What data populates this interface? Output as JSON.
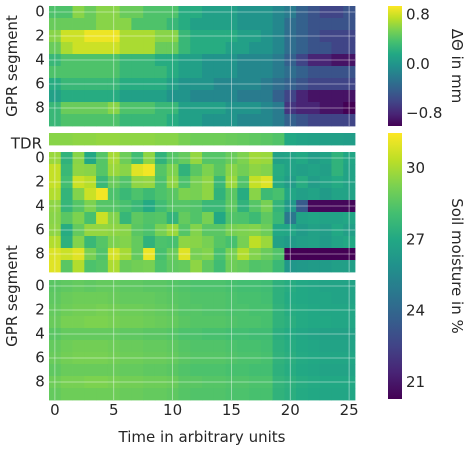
{
  "chart_data": {
    "type": "heatmap",
    "xlabel": "Time in arbitrary units",
    "x_ticks": [
      0,
      5,
      10,
      15,
      20,
      25
    ],
    "x_range": [
      -0.5,
      25.5
    ],
    "y_ticks": [
      0,
      2,
      4,
      6,
      8
    ],
    "grid": true,
    "panels": [
      {
        "id": "delta",
        "ylabel": "GPR segment",
        "rows": 10,
        "colorbar": {
          "label": "ΔΘ in mm",
          "min": -1.0,
          "max": 0.95,
          "ticks": [
            0.8,
            0.0,
            -0.8
          ],
          "tick_labels": [
            "0.8",
            "0.0",
            "−0.8"
          ]
        },
        "values": [
          [
            0.4,
            0.4,
            0.6,
            0.5,
            0.6,
            0.6,
            0.5,
            0.5,
            0.4,
            0.4,
            0.4,
            0.2,
            0.2,
            0.1,
            0.1,
            0.1,
            0.0,
            0.0,
            0.0,
            -0.1,
            -0.2,
            -0.4,
            -0.5,
            -0.6,
            -0.6,
            -0.5
          ],
          [
            0.5,
            0.5,
            0.5,
            0.5,
            0.6,
            0.6,
            0.6,
            0.4,
            0.4,
            0.4,
            0.3,
            0.2,
            0.1,
            0.1,
            0.1,
            0.1,
            0.0,
            0.0,
            0.0,
            -0.1,
            -0.3,
            -0.4,
            -0.5,
            -0.5,
            -0.5,
            -0.5
          ],
          [
            0.6,
            0.8,
            0.8,
            0.9,
            0.9,
            0.9,
            0.7,
            0.7,
            0.7,
            0.6,
            0.6,
            0.3,
            0.2,
            0.2,
            0.2,
            0.2,
            0.1,
            0.1,
            0.0,
            -0.1,
            -0.3,
            -0.4,
            -0.5,
            -0.6,
            -0.6,
            -0.6
          ],
          [
            0.5,
            0.7,
            0.8,
            0.8,
            0.8,
            0.8,
            0.7,
            0.7,
            0.7,
            0.5,
            0.5,
            0.3,
            0.2,
            0.2,
            0.2,
            0.1,
            0.1,
            0.0,
            0.0,
            -0.1,
            -0.3,
            -0.4,
            -0.5,
            -0.5,
            -0.6,
            -0.6
          ],
          [
            0.3,
            0.4,
            0.4,
            0.4,
            0.4,
            0.4,
            0.3,
            0.3,
            0.3,
            0.2,
            0.2,
            0.1,
            0.1,
            0.0,
            0.0,
            0.0,
            -0.1,
            -0.1,
            -0.1,
            -0.2,
            -0.4,
            -0.6,
            -0.8,
            -0.8,
            -0.9,
            -0.9
          ],
          [
            0.4,
            0.4,
            0.4,
            0.4,
            0.4,
            0.4,
            0.3,
            0.3,
            0.3,
            0.3,
            0.2,
            0.1,
            0.1,
            0.0,
            0.0,
            0.0,
            -0.1,
            -0.1,
            -0.1,
            -0.2,
            -0.3,
            -0.4,
            -0.5,
            -0.5,
            -0.5,
            -0.5
          ],
          [
            0.2,
            0.3,
            0.3,
            0.3,
            0.3,
            0.3,
            0.2,
            0.2,
            0.2,
            0.2,
            0.1,
            0.0,
            0.0,
            0.0,
            -0.1,
            -0.1,
            -0.1,
            -0.1,
            -0.2,
            -0.3,
            -0.4,
            -0.5,
            -0.6,
            -0.6,
            -0.6,
            -0.6
          ],
          [
            0.1,
            0.2,
            0.2,
            0.2,
            0.2,
            0.2,
            0.1,
            0.1,
            0.1,
            0.1,
            0.0,
            0.0,
            -0.1,
            -0.1,
            -0.1,
            -0.1,
            -0.2,
            -0.2,
            -0.2,
            -0.4,
            -0.6,
            -0.8,
            -0.9,
            -0.9,
            -0.9,
            -0.9
          ],
          [
            0.3,
            0.5,
            0.5,
            0.5,
            0.5,
            0.6,
            0.4,
            0.4,
            0.4,
            0.3,
            0.3,
            0.1,
            0.1,
            0.1,
            0.1,
            0.0,
            0.0,
            0.0,
            -0.1,
            -0.2,
            -0.7,
            -0.8,
            -0.8,
            -0.9,
            -0.9,
            -1.0
          ],
          [
            0.3,
            0.4,
            0.4,
            0.4,
            0.4,
            0.4,
            0.3,
            0.3,
            0.3,
            0.3,
            0.2,
            0.1,
            0.1,
            0.0,
            0.0,
            0.0,
            -0.1,
            -0.1,
            -0.1,
            -0.2,
            -0.4,
            -0.5,
            -0.6,
            -0.6,
            -0.6,
            -0.6
          ]
        ]
      },
      {
        "id": "tdr",
        "row_label": "TDR",
        "rows": 1,
        "values": [
          [
            29.5,
            29.5,
            29.6,
            29.6,
            29.7,
            29.7,
            29.6,
            29.6,
            29.6,
            29.5,
            29.5,
            29.2,
            29.0,
            29.0,
            29.0,
            28.9,
            28.8,
            28.7,
            28.6,
            28.4,
            27.0,
            26.8,
            26.7,
            26.6,
            26.6,
            26.5
          ]
        ]
      },
      {
        "id": "soil_top",
        "rows": 10,
        "values": [
          [
            29.8,
            27.5,
            29.5,
            27.0,
            28.5,
            30.0,
            29.0,
            28.0,
            29.6,
            27.5,
            28.5,
            28.8,
            29.7,
            28.5,
            28.5,
            28.9,
            29.3,
            29.9,
            29.8,
            26.7,
            26.8,
            27.0,
            26.5,
            26.8,
            27.5,
            26.9
          ],
          [
            30.5,
            27.8,
            29.6,
            29.5,
            28.5,
            29.8,
            29.5,
            31.0,
            31.3,
            28.5,
            29.3,
            27.5,
            28.6,
            29.3,
            28.6,
            29.5,
            29.1,
            29.6,
            29.4,
            27.2,
            26.8,
            26.6,
            26.8,
            26.6,
            27.5,
            26.8
          ],
          [
            30.5,
            28.1,
            30.6,
            30.3,
            27.8,
            28.9,
            28.4,
            29.6,
            29.7,
            28.3,
            29.6,
            28.3,
            29.2,
            29.6,
            27.8,
            29.8,
            28.4,
            30.5,
            30.9,
            27.1,
            26.5,
            27.2,
            26.5,
            26.8,
            27.1,
            26.8
          ],
          [
            30.2,
            27.6,
            29.4,
            30.6,
            31.3,
            28.3,
            27.8,
            28.3,
            27.9,
            28.3,
            28.6,
            29.3,
            29.2,
            29.6,
            27.5,
            28.6,
            27.2,
            29.5,
            27.9,
            28.2,
            26.9,
            26.6,
            26.8,
            26.4,
            26.8,
            26.8
          ],
          [
            29.6,
            27.7,
            28.5,
            29.3,
            28.5,
            28.5,
            28.2,
            27.8,
            27.1,
            28.0,
            28.5,
            28.5,
            28.4,
            27.8,
            27.8,
            28.7,
            27.5,
            28.5,
            29.2,
            27.6,
            26.3,
            23.5,
            20.5,
            20.5,
            20.5,
            20.5
          ],
          [
            29.5,
            28.6,
            29.3,
            28.2,
            30.6,
            29.4,
            27.7,
            28.7,
            28.4,
            28.5,
            27.6,
            28.8,
            28.4,
            29.2,
            27.0,
            28.4,
            28.3,
            27.9,
            28.7,
            27.8,
            24.8,
            26.8,
            26.9,
            26.8,
            26.8,
            26.9
          ],
          [
            29.6,
            27.2,
            28.8,
            29.7,
            29.7,
            29.6,
            29.5,
            28.6,
            28.3,
            29.2,
            29.8,
            28.5,
            29.4,
            28.6,
            28.6,
            29.2,
            29.3,
            29.4,
            29.0,
            27.0,
            26.9,
            26.4,
            26.7,
            26.5,
            27.0,
            26.6
          ],
          [
            30.2,
            27.4,
            29.4,
            27.8,
            28.5,
            29.3,
            29.4,
            28.8,
            27.5,
            28.3,
            28.2,
            29.6,
            29.5,
            29.2,
            28.5,
            28.2,
            29.2,
            30.4,
            29.8,
            26.7,
            26.4,
            26.6,
            26.7,
            26.4,
            26.8,
            27.0
          ],
          [
            30.9,
            30.6,
            31.0,
            29.2,
            28.4,
            30.8,
            30.0,
            28.8,
            31.2,
            28.2,
            28.9,
            31.0,
            29.2,
            29.4,
            28.2,
            29.2,
            30.2,
            29.4,
            28.9,
            28.4,
            20.3,
            20.3,
            20.3,
            20.3,
            20.3,
            20.3
          ],
          [
            31.0,
            28.6,
            30.2,
            28.3,
            28.5,
            30.1,
            28.9,
            29.1,
            29.2,
            28.3,
            28.7,
            28.8,
            29.6,
            28.7,
            28.0,
            29.0,
            28.8,
            28.4,
            28.5,
            27.8,
            26.2,
            26.3,
            26.4,
            26.4,
            26.6,
            26.6
          ]
        ]
      },
      {
        "id": "soil_bottom",
        "ylabel": "GPR segment",
        "rows": 10,
        "colorbar": {
          "label": "Soil moisture in %",
          "min": 20.3,
          "max": 31.5,
          "ticks": [
            30,
            27,
            24,
            21
          ],
          "tick_labels": [
            "30",
            "27",
            "24",
            "21"
          ]
        },
        "values": [
          [
            28.6,
            28.7,
            28.8,
            28.7,
            28.8,
            28.8,
            28.7,
            28.7,
            28.6,
            28.6,
            28.5,
            28.4,
            28.3,
            28.3,
            28.3,
            28.2,
            28.1,
            28.1,
            28.0,
            27.4,
            27.2,
            27.0,
            26.9,
            26.8,
            26.8,
            26.8
          ],
          [
            28.7,
            28.9,
            29.0,
            29.0,
            29.0,
            28.9,
            28.8,
            28.8,
            28.8,
            28.7,
            28.6,
            28.5,
            28.4,
            28.4,
            28.4,
            28.3,
            28.2,
            28.2,
            28.1,
            27.4,
            27.1,
            27.0,
            26.9,
            26.9,
            26.8,
            26.8
          ],
          [
            28.8,
            29.0,
            29.1,
            29.1,
            29.2,
            29.1,
            29.0,
            29.0,
            28.9,
            28.8,
            28.7,
            28.5,
            28.5,
            28.4,
            28.4,
            28.3,
            28.3,
            28.2,
            28.2,
            27.5,
            27.2,
            27.1,
            27.0,
            26.9,
            26.9,
            26.9
          ],
          [
            28.9,
            29.2,
            29.2,
            29.3,
            29.3,
            29.2,
            29.1,
            29.1,
            29.0,
            28.9,
            28.8,
            28.6,
            28.5,
            28.5,
            28.5,
            28.4,
            28.3,
            28.3,
            28.2,
            27.5,
            27.3,
            27.1,
            27.0,
            27.0,
            26.9,
            26.9
          ],
          [
            28.6,
            28.8,
            28.8,
            28.8,
            28.8,
            28.8,
            28.7,
            28.7,
            28.6,
            28.6,
            28.5,
            28.3,
            28.3,
            28.2,
            28.2,
            28.1,
            28.1,
            28.0,
            28.0,
            27.3,
            27.1,
            26.9,
            26.8,
            26.7,
            26.7,
            26.7
          ],
          [
            28.8,
            29.0,
            29.1,
            29.1,
            29.1,
            29.0,
            28.9,
            28.9,
            28.8,
            28.8,
            28.7,
            28.5,
            28.4,
            28.4,
            28.4,
            28.3,
            28.2,
            28.2,
            28.1,
            27.4,
            27.2,
            27.0,
            26.9,
            26.8,
            26.8,
            26.8
          ],
          [
            28.9,
            29.1,
            29.2,
            29.2,
            29.2,
            29.1,
            29.0,
            29.0,
            28.9,
            28.9,
            28.8,
            28.6,
            28.5,
            28.5,
            28.5,
            28.4,
            28.3,
            28.3,
            28.2,
            27.5,
            27.3,
            27.1,
            27.0,
            26.9,
            26.9,
            26.9
          ],
          [
            28.7,
            28.9,
            28.9,
            28.9,
            28.9,
            28.9,
            28.8,
            28.8,
            28.7,
            28.7,
            28.6,
            28.4,
            28.3,
            28.3,
            28.3,
            28.2,
            28.2,
            28.1,
            28.1,
            27.4,
            27.2,
            27.0,
            26.9,
            26.8,
            26.8,
            26.8
          ],
          [
            29.0,
            29.2,
            29.2,
            29.3,
            29.3,
            29.2,
            29.1,
            29.1,
            29.0,
            29.0,
            28.9,
            28.6,
            28.6,
            28.5,
            28.5,
            28.4,
            28.4,
            28.3,
            28.3,
            27.6,
            27.4,
            27.2,
            27.1,
            27.0,
            27.0,
            27.0
          ],
          [
            28.8,
            29.0,
            29.0,
            29.0,
            29.0,
            29.0,
            28.9,
            28.9,
            28.8,
            28.8,
            28.7,
            28.5,
            28.4,
            28.4,
            28.4,
            28.3,
            28.3,
            28.2,
            28.2,
            27.5,
            27.3,
            27.1,
            27.0,
            26.9,
            26.9,
            26.9
          ]
        ]
      }
    ]
  }
}
